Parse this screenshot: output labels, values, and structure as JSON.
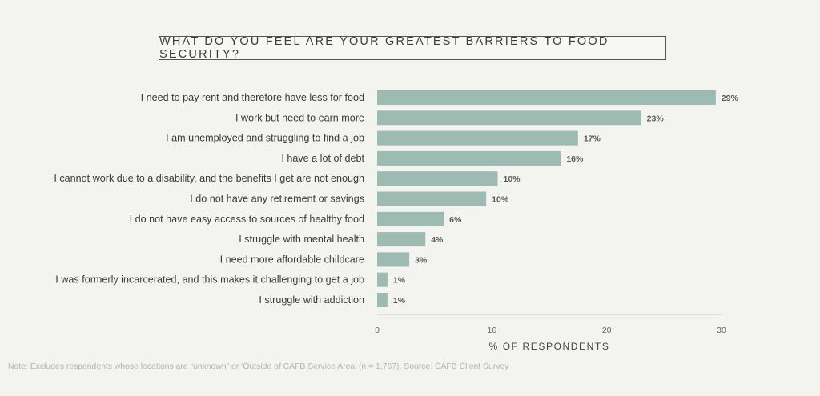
{
  "chart_data": {
    "type": "bar",
    "orientation": "horizontal",
    "title": "WHAT DO YOU FEEL ARE YOUR GREATEST BARRIERS TO FOOD SECURITY?",
    "xlabel": "% OF RESPONDENTS",
    "ylabel": "",
    "xlim": [
      0,
      30
    ],
    "xticks": [
      0,
      10,
      20,
      30
    ],
    "grid": false,
    "bar_color": "#9dbab3",
    "categories": [
      "I need to pay rent and therefore have less for food",
      "I  work but need to earn more",
      "I am unemployed and struggling to find a job",
      "I have a lot of debt",
      "I cannot work due to a disability, and the benefits I get are not enough",
      "I do not have any retirement or savings",
      "I do not have easy access to sources of healthy food",
      "I struggle with mental health",
      "I need more affordable childcare",
      "I was formerly incarcerated, and this makes it challenging to get a job",
      "I struggle with addiction"
    ],
    "values": [
      29.5,
      23,
      17.5,
      16,
      10.5,
      9.5,
      5.8,
      4.2,
      2.8,
      0.9,
      0.9
    ],
    "value_labels": [
      "29%",
      "23%",
      "17%",
      "16%",
      "10%",
      "10%",
      "6%",
      "4%",
      "3%",
      "1%",
      "1%"
    ]
  },
  "note": "Note: Excludes respondents whose locations are “unknown” or ‘Outside of CAFB Service Area’ (n = 1,767).  Source: CAFB Client Survey"
}
